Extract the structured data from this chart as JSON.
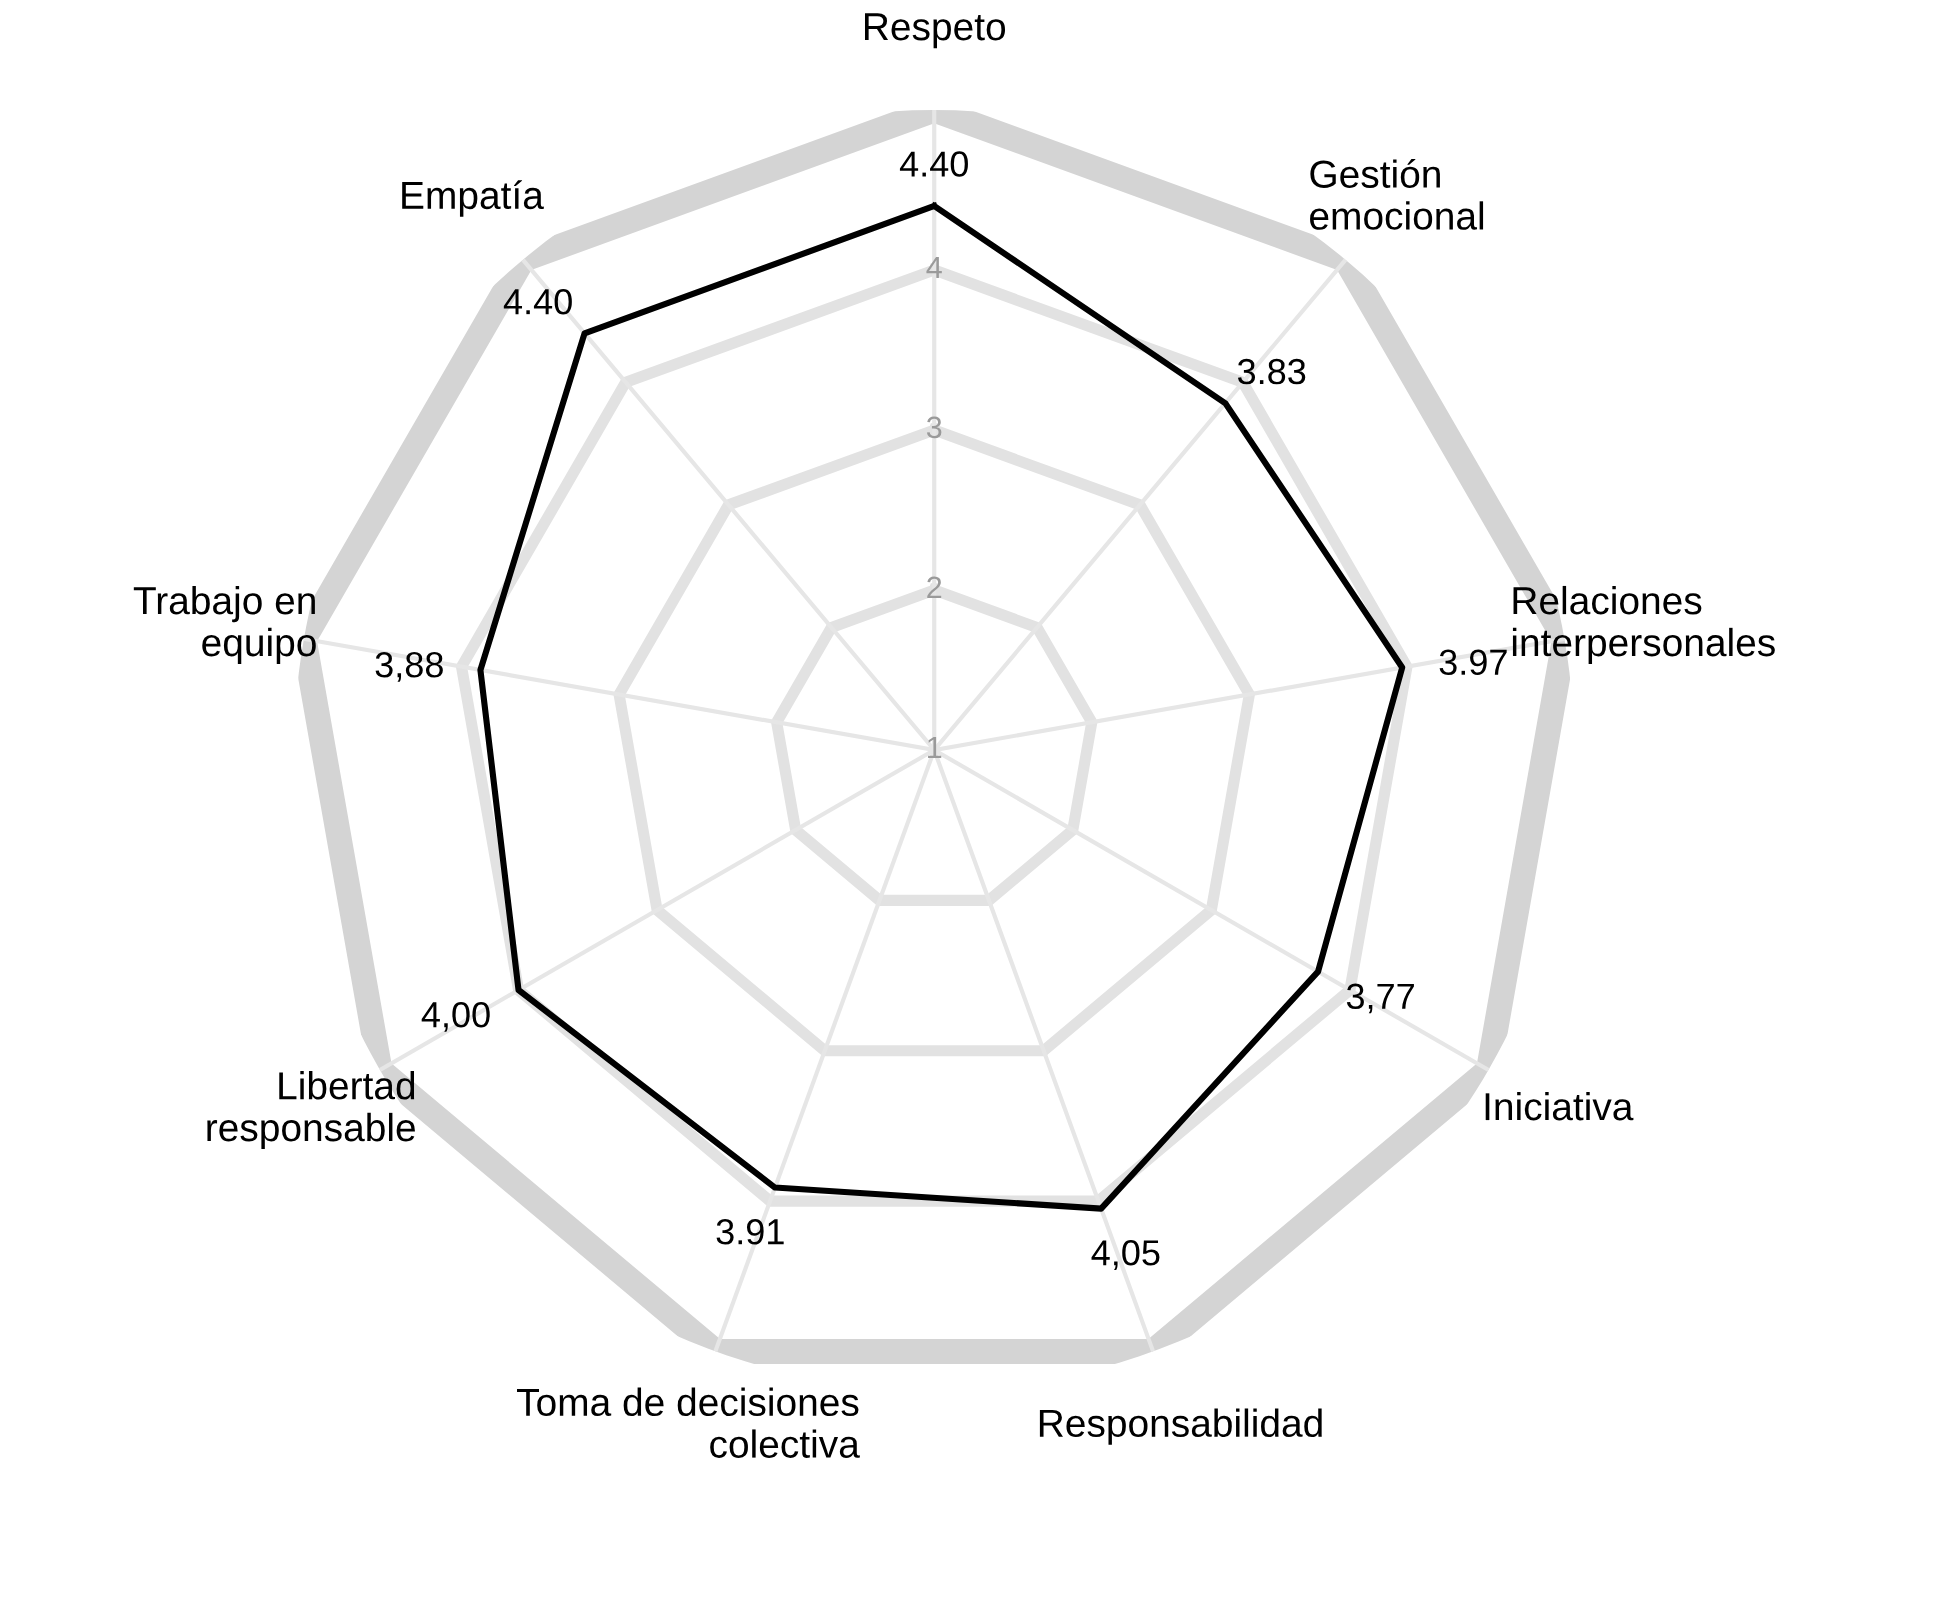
{
  "chart_data": {
    "type": "radar",
    "categories": [
      "Respeto",
      "Gestión\nemocional",
      "Relaciones\ninterpersonales",
      "Iniciativa",
      "Responsabilidad",
      "Toma de decisiones\ncolectiva",
      "Libertad\nresponsable",
      "Trabajo en\nequipo",
      "Empatía"
    ],
    "series": [
      {
        "color": "#000000",
        "values": [
          4.4,
          3.83,
          3.97,
          3.77,
          4.05,
          3.91,
          4.0,
          3.88,
          4.4
        ],
        "value_labels": [
          "4.40",
          "3.83",
          "3.97",
          "3,77",
          "4,05",
          "3.91",
          "4,00",
          "3,88",
          "4.40"
        ]
      }
    ],
    "ylim": [
      1,
      5
    ],
    "yticks": [
      1,
      2,
      3,
      4
    ],
    "grid": true,
    "marker": "none",
    "line_style": "solid"
  }
}
